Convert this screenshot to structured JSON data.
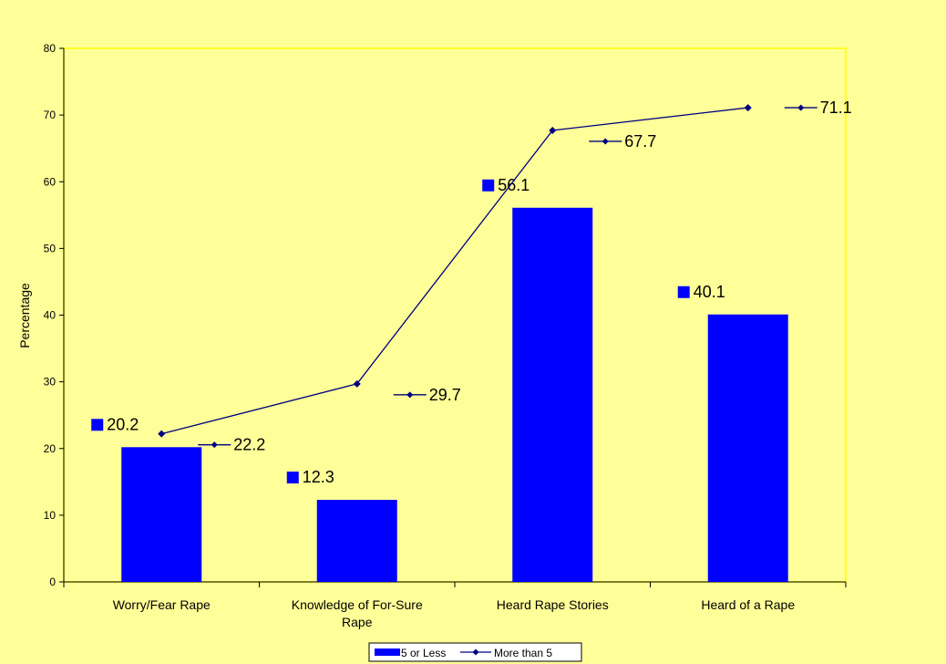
{
  "chart_data": {
    "type": "bar",
    "title": "",
    "xlabel": "",
    "ylabel": "Percentage",
    "ylim": [
      0,
      80
    ],
    "yticks": [
      "0",
      "10",
      "20",
      "30",
      "40",
      "50",
      "60",
      "70",
      "80"
    ],
    "categories": [
      [
        "Worry/Fear Rape"
      ],
      [
        "Knowledge of For-Sure",
        "Rape"
      ],
      [
        "Heard Rape Stories"
      ],
      [
        "Heard of a Rape"
      ]
    ],
    "series": [
      {
        "name": "5 or Less",
        "kind": "bar",
        "values": [
          20.2,
          12.3,
          56.1,
          40.1
        ],
        "labels": [
          "20.2",
          "12.3",
          "56.1",
          "40.1"
        ]
      },
      {
        "name": "More than 5",
        "kind": "line",
        "values": [
          22.2,
          29.7,
          67.7,
          71.1
        ],
        "labels": [
          "22.2",
          "29.7",
          "67.7",
          "71.1"
        ]
      }
    ],
    "legend_position": "bottom",
    "grid": false,
    "colors": {
      "bar": "#0000FF",
      "line": "#000080",
      "plot_bg": "#FFFF99",
      "page_bg": "#FFFF99"
    }
  }
}
